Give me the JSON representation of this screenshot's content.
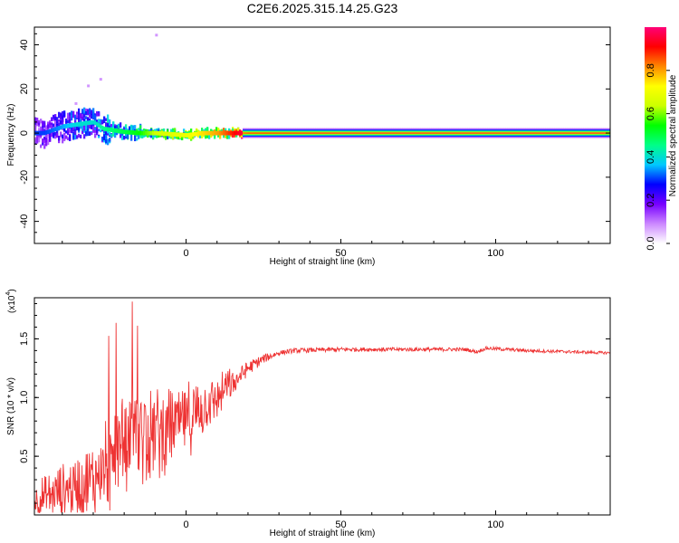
{
  "title": "C2E6.2025.315.14.25.G23",
  "chart_data": [
    {
      "type": "heatmap",
      "xlabel": "Height of straight line (km)",
      "ylabel": "Frequency (Hz)",
      "xlim": [
        -49,
        137
      ],
      "ylim": [
        -50,
        48
      ],
      "xticks": [
        0,
        50,
        100
      ],
      "yticks": [
        -40,
        -20,
        0,
        20,
        40
      ],
      "grid": false,
      "colorbar": {
        "label": "Normalized spectral amplitude",
        "range": [
          0,
          1
        ],
        "ticks": [
          "0.0",
          "0.2",
          "0.4",
          "0.6",
          "0.8"
        ],
        "tick_values": [
          0,
          0.2,
          0.4,
          0.6,
          0.8
        ],
        "colors": [
          "#ffffff",
          "#cc88ff",
          "#7700ff",
          "#0000ff",
          "#00c8ff",
          "#00ff88",
          "#00ff00",
          "#ccff00",
          "#ffff00",
          "#ff8800",
          "#ff0000",
          "#ff0077"
        ]
      },
      "ridge": {
        "description_points": [
          [
            -46,
            0,
            0.2
          ],
          [
            -40,
            3,
            0.25
          ],
          [
            -35,
            4,
            0.3
          ],
          [
            -30,
            5,
            0.3
          ],
          [
            -27,
            2,
            0.35
          ],
          [
            -20,
            0.5,
            0.4
          ],
          [
            -15,
            0,
            0.45
          ],
          [
            -10,
            0,
            0.55
          ],
          [
            0,
            -1,
            0.6
          ],
          [
            5,
            0,
            0.65
          ],
          [
            10,
            0,
            0.7
          ],
          [
            15,
            0,
            0.8
          ],
          [
            20,
            0,
            0.9
          ],
          [
            50,
            0,
            0.95
          ],
          [
            100,
            0,
            0.95
          ],
          [
            137,
            0,
            0.95
          ]
        ]
      }
    },
    {
      "type": "line",
      "xlabel": "Height of straight line (km)",
      "ylabel": "SNR (10 * v/v)",
      "yscale_label": "(x10",
      "yscale_exp": "4",
      "yscale_close": ")",
      "xlim": [
        -49,
        137
      ],
      "ylim": [
        0,
        1.85
      ],
      "xticks": [
        0,
        50,
        100
      ],
      "yticks": [
        "0.5",
        "1.0",
        "1.5"
      ],
      "ytick_values": [
        0.5,
        1.0,
        1.5
      ],
      "grid": false,
      "series": [
        {
          "color": "#ee3333",
          "envelope": [
            [
              -49,
              0.12
            ],
            [
              -40,
              0.2
            ],
            [
              -30,
              0.3
            ],
            [
              -25,
              0.45
            ],
            [
              -20,
              0.6
            ],
            [
              -15,
              0.7
            ],
            [
              -10,
              0.7
            ],
            [
              -5,
              0.75
            ],
            [
              0,
              0.8
            ],
            [
              5,
              0.9
            ],
            [
              10,
              1.0
            ],
            [
              15,
              1.12
            ],
            [
              20,
              1.25
            ],
            [
              25,
              1.33
            ],
            [
              30,
              1.38
            ],
            [
              35,
              1.4
            ],
            [
              50,
              1.41
            ],
            [
              90,
              1.41
            ],
            [
              94,
              1.39
            ],
            [
              97,
              1.42
            ],
            [
              110,
              1.4
            ],
            [
              137,
              1.38
            ]
          ],
          "noise": [
            [
              -49,
              0.12
            ],
            [
              -25,
              0.3
            ],
            [
              -15,
              0.35
            ],
            [
              0,
              0.25
            ],
            [
              10,
              0.15
            ],
            [
              20,
              0.06
            ],
            [
              30,
              0.02
            ],
            [
              137,
              0.012
            ]
          ]
        }
      ]
    }
  ]
}
